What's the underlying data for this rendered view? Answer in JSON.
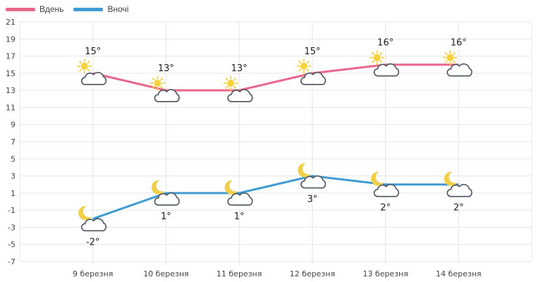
{
  "legend": {
    "day_label": "Вдень",
    "night_label": "Вночі"
  },
  "colors": {
    "day": "#e8678a",
    "night": "#3f9bd1",
    "grid": "#e6e6e6",
    "axis_text": "#444444",
    "sun": "#f7d23e",
    "moon": "#f2cf4a",
    "cloud_stroke": "#4a5560"
  },
  "chart_data": {
    "type": "line",
    "categories": [
      "9 березня",
      "10 березня",
      "11 березня",
      "12 березня",
      "13 березня",
      "14 березня"
    ],
    "series": [
      {
        "name": "Вдень",
        "values": [
          15,
          13,
          13,
          15,
          16,
          16
        ],
        "labels": [
          "15°",
          "13°",
          "13°",
          "15°",
          "16°",
          "16°"
        ],
        "icon": "sun-cloud-icon"
      },
      {
        "name": "Вночі",
        "values": [
          -2,
          1,
          1,
          3,
          2,
          2
        ],
        "labels": [
          "-2°",
          "1°",
          "1°",
          "3°",
          "2°",
          "2°"
        ],
        "icon": "moon-cloud-icon"
      }
    ],
    "yticks": [
      21,
      19,
      17,
      15,
      13,
      11,
      9,
      7,
      5,
      3,
      1,
      -1,
      -3,
      -5,
      -7
    ],
    "ylim": [
      -7,
      21
    ],
    "grid": true,
    "legend_position": "top-left"
  }
}
